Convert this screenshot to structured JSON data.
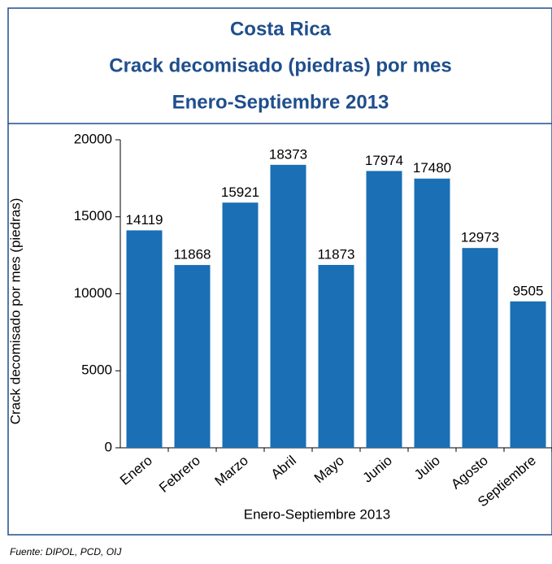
{
  "chart_data": {
    "type": "bar",
    "title": [
      "Costa Rica",
      "Crack decomisado (piedras) por mes",
      "Enero-Septiembre 2013"
    ],
    "categories": [
      "Enero",
      "Febrero",
      "Marzo",
      "Abril",
      "Mayo",
      "Junio",
      "Julio",
      "Agosto",
      "Septiembre"
    ],
    "values": [
      14119,
      11868,
      15921,
      18373,
      11873,
      17974,
      17480,
      12973,
      9505
    ],
    "color": "#1a6fb5",
    "ylim": [
      0,
      20000
    ],
    "yticks": [
      0,
      5000,
      10000,
      15000,
      20000
    ],
    "xlabel": "Enero-Septiembre 2013",
    "ylabel": "Crack decomisado por mes  (piedras)",
    "source": "Fuente: DIPOL, PCD, OIJ"
  }
}
